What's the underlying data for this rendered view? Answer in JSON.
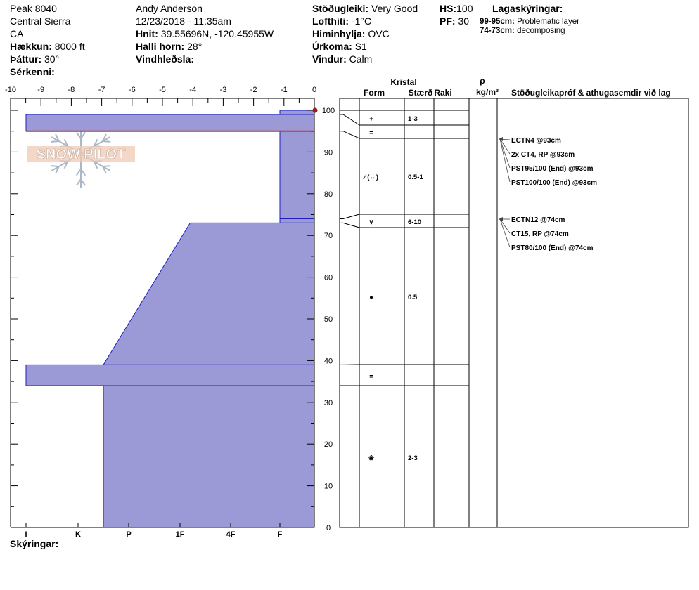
{
  "header": {
    "site": "Peak 8040",
    "range": "Central Sierra",
    "state": "CA",
    "elevation_label": "Hækkun:",
    "elevation_value": "8000 ft",
    "aspect_label": "Þáttur:",
    "aspect_value": "30°",
    "features_label": "Sérkenni:",
    "observer": "Andy Anderson",
    "datetime": "12/23/2018 - 11:35am",
    "coords_label": "Hnit:",
    "coords_value": "39.55696N, -120.45955W",
    "slope_label": "Halli horn:",
    "slope_value": "28°",
    "wind_loading_label": "Vindhleðsla:",
    "stability_label": "Stöðugleiki:",
    "stability_value": "Very Good",
    "air_temp_label": "Lofthiti:",
    "air_temp_value": "-1°C",
    "sky_label": "Himinhylja:",
    "sky_value": "OVC",
    "precip_label": "Úrkoma:",
    "precip_value": "S1",
    "wind_label": "Vindur:",
    "wind_value": "Calm",
    "hs_label": "HS:",
    "hs_value": "100",
    "pf_label": "PF:",
    "pf_value": "30",
    "legend_title": "Lagaskýringar:",
    "legend_items": [
      {
        "range": "99-95cm:",
        "text": "Problematic layer"
      },
      {
        "range": "74-73cm:",
        "text": "decomposing"
      }
    ]
  },
  "footer": {
    "notes_label": "Skýringar:"
  },
  "watermark": {
    "text": "SNOW PILOT"
  },
  "chart_data": {
    "type": "area",
    "temp_axis": {
      "ticks": [
        "-10",
        "-9",
        "-8",
        "-7",
        "-6",
        "-5",
        "-4",
        "-3",
        "-2",
        "-1",
        "0"
      ],
      "range": [
        -10,
        0
      ]
    },
    "depth_axis": {
      "ticks": [
        "0",
        "10",
        "20",
        "30",
        "40",
        "50",
        "60",
        "70",
        "80",
        "90",
        "100"
      ],
      "range": [
        0,
        100
      ],
      "unit": "cm"
    },
    "hardness_axis": {
      "ticks": [
        "I",
        "K",
        "P",
        "1F",
        "4F",
        "F"
      ]
    },
    "hardness_profile": [
      {
        "top": 100,
        "bottom": 99,
        "hardness": 1
      },
      {
        "top": 99,
        "bottom": 95,
        "hardness": 6
      },
      {
        "top": 95,
        "bottom": 74,
        "hardness": 1
      },
      {
        "top": 74,
        "bottom": 73,
        "hardness": 1
      },
      {
        "top": 73,
        "bottom": 39,
        "hardness_top": 2.8,
        "hardness_bottom": 4.5
      },
      {
        "top": 39,
        "bottom": 34,
        "hardness": 6
      },
      {
        "top": 34,
        "bottom": 0,
        "hardness": 4.5
      }
    ],
    "problematic_layer": 95,
    "surface_temp_point": {
      "depth": 100,
      "temp": 0
    },
    "layers_table": {
      "headers": {
        "kristal": "Kristal",
        "form": "Form",
        "size": "Stærð",
        "moisture": "Raki",
        "rho": "ρ",
        "density_unit": "kg/m³",
        "tests": "Stöðugleikapróf & athugasemdir við lag"
      },
      "boundaries": [
        100,
        99,
        95,
        74,
        73,
        39,
        34,
        0
      ],
      "layers": [
        {
          "depth": 97,
          "form": "+",
          "size": "1-3"
        },
        {
          "depth": 95,
          "form": "=",
          "size": ""
        },
        {
          "depth": 85,
          "form": "⁄ (↔)",
          "size": "0.5-1"
        },
        {
          "depth": 73.5,
          "form": "∨",
          "size": "6-10"
        },
        {
          "depth": 56,
          "form": "●",
          "size": "0.5"
        },
        {
          "depth": 36.5,
          "form": "=",
          "size": ""
        },
        {
          "depth": 17,
          "form": "❀",
          "size": "2-3"
        }
      ]
    },
    "tests": [
      {
        "depth": 93,
        "label": "ECTN4 @93cm"
      },
      {
        "depth": 93,
        "label": "2x CT4, RP @93cm"
      },
      {
        "depth": 93,
        "label": "PST95/100 (End) @93cm"
      },
      {
        "depth": 93,
        "label": "PST100/100 (End) @93cm"
      },
      {
        "depth": 74,
        "label": "ECTN12 @74cm"
      },
      {
        "depth": 74,
        "label": "CT15, RP @74cm"
      },
      {
        "depth": 74,
        "label": "PST80/100 (End) @74cm"
      }
    ],
    "colors": {
      "fill": "#9b9ad7",
      "outline": "#1d1dbd",
      "problem": "#c0392b",
      "temp_point": "#9b1c1c"
    }
  }
}
